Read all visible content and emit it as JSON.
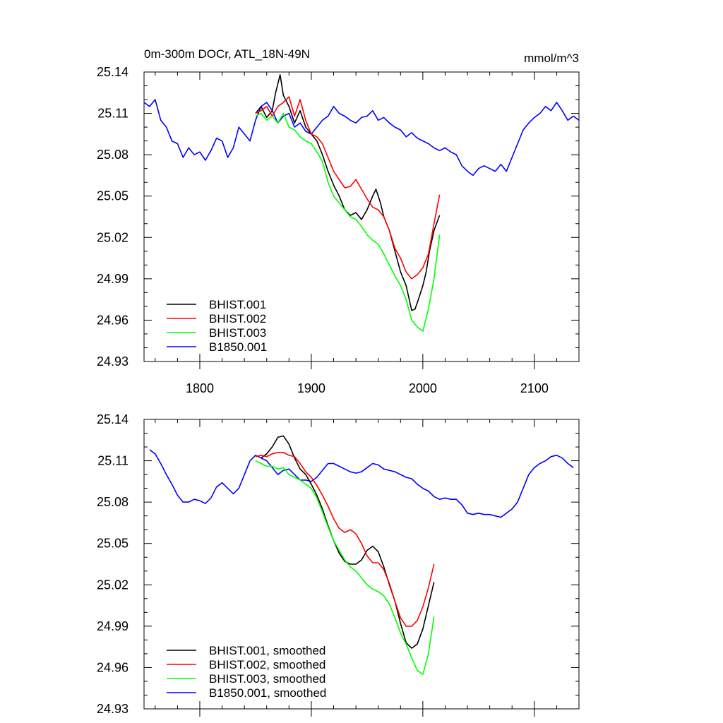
{
  "chart_data": [
    {
      "type": "line",
      "title": "0m-300m DOCr, ATL_18N-49N",
      "units": "mmol/m^3",
      "xlim": [
        1750,
        2140
      ],
      "ylim": [
        24.93,
        25.14
      ],
      "x_ticks": [
        1800,
        1900,
        2000,
        2100
      ],
      "x_tick_labels": [
        "1800",
        "1900",
        "2000",
        "2100"
      ],
      "y_ticks": [
        24.93,
        24.96,
        24.99,
        25.02,
        25.05,
        25.08,
        25.11,
        25.14
      ],
      "y_tick_labels": [
        "24.93",
        "24.96",
        "24.99",
        "25.02",
        "25.05",
        "25.08",
        "25.11",
        "25.14"
      ],
      "legend": [
        "BHIST.001",
        "BHIST.002",
        "BHIST.003",
        "B1850.001"
      ],
      "series": [
        {
          "name": "BHIST.001",
          "color": "#000000",
          "x": [
            1850,
            1855,
            1860,
            1865,
            1868,
            1872,
            1875,
            1880,
            1885,
            1890,
            1895,
            1900,
            1905,
            1910,
            1915,
            1920,
            1925,
            1930,
            1935,
            1940,
            1945,
            1950,
            1955,
            1958,
            1962,
            1965,
            1970,
            1975,
            1980,
            1985,
            1990,
            1993,
            1996,
            2000,
            2003,
            2006,
            2010,
            2015
          ],
          "y": [
            25.11,
            25.115,
            25.107,
            25.112,
            25.125,
            25.138,
            25.123,
            25.115,
            25.103,
            25.112,
            25.1,
            25.095,
            25.09,
            25.08,
            25.068,
            25.058,
            25.05,
            25.04,
            25.036,
            25.038,
            25.033,
            25.04,
            25.05,
            25.055,
            25.045,
            25.035,
            25.025,
            25.01,
            24.995,
            24.985,
            24.967,
            24.968,
            24.975,
            24.985,
            24.995,
            25.01,
            25.025,
            25.036
          ]
        },
        {
          "name": "BHIST.002",
          "color": "#ff0000",
          "x": [
            1850,
            1855,
            1860,
            1865,
            1870,
            1875,
            1880,
            1885,
            1890,
            1895,
            1900,
            1905,
            1910,
            1915,
            1920,
            1925,
            1930,
            1935,
            1940,
            1945,
            1950,
            1955,
            1960,
            1965,
            1970,
            1975,
            1980,
            1985,
            1990,
            1995,
            2000,
            2005,
            2010,
            2015
          ],
          "y": [
            25.11,
            25.112,
            25.115,
            25.108,
            25.115,
            25.118,
            25.122,
            25.108,
            25.12,
            25.105,
            25.095,
            25.093,
            25.088,
            25.078,
            25.068,
            25.062,
            25.056,
            25.057,
            25.062,
            25.055,
            25.048,
            25.042,
            25.04,
            25.035,
            25.025,
            25.012,
            25.005,
            24.995,
            24.99,
            24.993,
            24.998,
            25.008,
            25.03,
            25.051
          ]
        },
        {
          "name": "BHIST.003",
          "color": "#00ff00",
          "x": [
            1850,
            1855,
            1860,
            1865,
            1870,
            1875,
            1880,
            1885,
            1890,
            1895,
            1900,
            1905,
            1910,
            1915,
            1920,
            1925,
            1930,
            1935,
            1940,
            1945,
            1950,
            1955,
            1960,
            1965,
            1970,
            1975,
            1980,
            1985,
            1990,
            1995,
            2000,
            2005,
            2010,
            2015
          ],
          "y": [
            25.108,
            25.11,
            25.105,
            25.108,
            25.103,
            25.11,
            25.1,
            25.098,
            25.093,
            25.09,
            25.088,
            25.082,
            25.075,
            25.06,
            25.05,
            25.045,
            25.04,
            25.035,
            25.033,
            25.028,
            25.022,
            25.018,
            25.015,
            25.008,
            25.0,
            24.992,
            24.985,
            24.975,
            24.96,
            24.955,
            24.952,
            24.968,
            24.99,
            25.022
          ]
        },
        {
          "name": "B1850.001",
          "color": "#0000ff",
          "x": [
            1750,
            1755,
            1760,
            1765,
            1770,
            1775,
            1780,
            1785,
            1790,
            1795,
            1800,
            1805,
            1810,
            1815,
            1820,
            1825,
            1830,
            1835,
            1840,
            1845,
            1850,
            1855,
            1860,
            1865,
            1870,
            1875,
            1880,
            1885,
            1890,
            1895,
            1900,
            1905,
            1910,
            1915,
            1920,
            1925,
            1930,
            1935,
            1940,
            1945,
            1950,
            1955,
            1960,
            1965,
            1970,
            1975,
            1980,
            1985,
            1990,
            1995,
            2000,
            2005,
            2010,
            2015,
            2020,
            2025,
            2030,
            2035,
            2040,
            2045,
            2050,
            2055,
            2060,
            2065,
            2070,
            2075,
            2080,
            2085,
            2090,
            2095,
            2100,
            2105,
            2110,
            2115,
            2120,
            2125,
            2130,
            2135,
            2140
          ],
          "y": [
            25.118,
            25.115,
            25.12,
            25.105,
            25.1,
            25.09,
            25.088,
            25.078,
            25.085,
            25.08,
            25.082,
            25.076,
            25.083,
            25.092,
            25.09,
            25.078,
            25.085,
            25.1,
            25.095,
            25.09,
            25.105,
            25.115,
            25.118,
            25.112,
            25.103,
            25.108,
            25.11,
            25.1,
            25.103,
            25.097,
            25.095,
            25.1,
            25.105,
            25.108,
            25.115,
            25.11,
            25.108,
            25.105,
            25.103,
            25.107,
            25.108,
            25.112,
            25.105,
            25.107,
            25.103,
            25.1,
            25.098,
            25.093,
            25.096,
            25.092,
            25.09,
            25.088,
            25.085,
            25.083,
            25.085,
            25.082,
            25.08,
            25.072,
            25.068,
            25.065,
            25.07,
            25.072,
            25.07,
            25.068,
            25.073,
            25.068,
            25.078,
            25.088,
            25.098,
            25.103,
            25.107,
            25.11,
            25.115,
            25.112,
            25.118,
            25.112,
            25.105,
            25.108,
            25.105
          ]
        }
      ]
    },
    {
      "type": "line",
      "xlim": [
        1750,
        2140
      ],
      "ylim": [
        24.93,
        25.14
      ],
      "x_ticks": [
        1800,
        1900,
        2000,
        2100
      ],
      "y_ticks": [
        24.93,
        24.96,
        24.99,
        25.02,
        25.05,
        25.08,
        25.11,
        25.14
      ],
      "y_tick_labels": [
        "24.93",
        "24.96",
        "24.99",
        "25.02",
        "25.05",
        "25.08",
        "25.11",
        "25.14"
      ],
      "legend": [
        "BHIST.001, smoothed",
        "BHIST.002, smoothed",
        "BHIST.003, smoothed",
        "B1850.001, smoothed"
      ],
      "series": [
        {
          "name": "BHIST.001, smoothed",
          "color": "#000000",
          "x": [
            1855,
            1860,
            1865,
            1870,
            1875,
            1880,
            1885,
            1890,
            1895,
            1900,
            1905,
            1910,
            1915,
            1920,
            1925,
            1930,
            1935,
            1940,
            1945,
            1950,
            1955,
            1960,
            1965,
            1970,
            1975,
            1980,
            1985,
            1990,
            1995,
            2000,
            2005,
            2010
          ],
          "y": [
            25.112,
            25.115,
            25.12,
            25.127,
            25.128,
            25.122,
            25.112,
            25.104,
            25.1,
            25.093,
            25.085,
            25.075,
            25.063,
            25.052,
            25.043,
            25.037,
            25.035,
            25.035,
            25.038,
            25.045,
            25.048,
            25.044,
            25.033,
            25.02,
            25.008,
            24.992,
            24.978,
            24.974,
            24.977,
            24.988,
            25.005,
            25.022
          ]
        },
        {
          "name": "BHIST.002, smoothed",
          "color": "#ff0000",
          "x": [
            1850,
            1855,
            1860,
            1865,
            1870,
            1875,
            1880,
            1885,
            1890,
            1895,
            1900,
            1905,
            1910,
            1915,
            1920,
            1925,
            1930,
            1935,
            1940,
            1945,
            1950,
            1955,
            1960,
            1965,
            1970,
            1975,
            1980,
            1985,
            1990,
            1995,
            2000,
            2005,
            2010
          ],
          "y": [
            25.113,
            25.114,
            25.113,
            25.115,
            25.116,
            25.116,
            25.114,
            25.113,
            25.108,
            25.102,
            25.098,
            25.092,
            25.085,
            25.077,
            25.068,
            25.061,
            25.058,
            25.06,
            25.057,
            25.05,
            25.041,
            25.036,
            25.036,
            25.031,
            25.021,
            25.008,
            24.996,
            24.99,
            24.99,
            24.994,
            25.004,
            25.018,
            25.035
          ]
        },
        {
          "name": "BHIST.003, smoothed",
          "color": "#00ff00",
          "x": [
            1850,
            1855,
            1860,
            1865,
            1870,
            1875,
            1880,
            1885,
            1890,
            1895,
            1900,
            1905,
            1910,
            1915,
            1920,
            1925,
            1930,
            1935,
            1940,
            1945,
            1950,
            1955,
            1960,
            1965,
            1970,
            1975,
            1980,
            1985,
            1990,
            1995,
            2000,
            2005,
            2010
          ],
          "y": [
            25.11,
            25.108,
            25.106,
            25.106,
            25.104,
            25.105,
            25.1,
            25.098,
            25.096,
            25.093,
            25.09,
            25.083,
            25.073,
            25.062,
            25.052,
            25.045,
            25.038,
            25.033,
            25.03,
            25.025,
            25.02,
            25.017,
            25.015,
            25.012,
            25.006,
            24.996,
            24.985,
            24.977,
            24.967,
            24.958,
            24.955,
            24.97,
            24.997
          ]
        },
        {
          "name": "B1850.001, smoothed",
          "color": "#0000ff",
          "x": [
            1755,
            1760,
            1765,
            1770,
            1775,
            1780,
            1785,
            1790,
            1795,
            1800,
            1805,
            1810,
            1815,
            1820,
            1825,
            1830,
            1835,
            1840,
            1845,
            1850,
            1855,
            1860,
            1865,
            1870,
            1875,
            1880,
            1885,
            1890,
            1895,
            1900,
            1905,
            1910,
            1915,
            1920,
            1925,
            1930,
            1935,
            1940,
            1945,
            1950,
            1955,
            1960,
            1965,
            1970,
            1975,
            1980,
            1985,
            1990,
            1995,
            2000,
            2005,
            2010,
            2015,
            2020,
            2025,
            2030,
            2035,
            2040,
            2045,
            2050,
            2055,
            2060,
            2065,
            2070,
            2075,
            2080,
            2085,
            2090,
            2095,
            2100,
            2105,
            2110,
            2115,
            2120,
            2125,
            2130,
            2135
          ],
          "y": [
            25.118,
            25.115,
            25.108,
            25.1,
            25.093,
            25.085,
            25.08,
            25.08,
            25.082,
            25.081,
            25.079,
            25.083,
            25.091,
            25.094,
            25.09,
            25.086,
            25.09,
            25.1,
            25.11,
            25.114,
            25.112,
            25.11,
            25.105,
            25.1,
            25.103,
            25.104,
            25.1,
            25.096,
            25.096,
            25.095,
            25.098,
            25.103,
            25.108,
            25.108,
            25.106,
            25.104,
            25.102,
            25.101,
            25.102,
            25.105,
            25.108,
            25.107,
            25.104,
            25.103,
            25.102,
            25.1,
            25.098,
            25.097,
            25.093,
            25.09,
            25.088,
            25.084,
            25.082,
            25.083,
            25.082,
            25.082,
            25.078,
            25.072,
            25.071,
            25.072,
            25.071,
            25.071,
            25.07,
            25.069,
            25.072,
            25.075,
            25.08,
            25.09,
            25.1,
            25.105,
            25.108,
            25.11,
            25.113,
            25.114,
            25.112,
            25.108,
            25.105
          ]
        }
      ]
    }
  ]
}
